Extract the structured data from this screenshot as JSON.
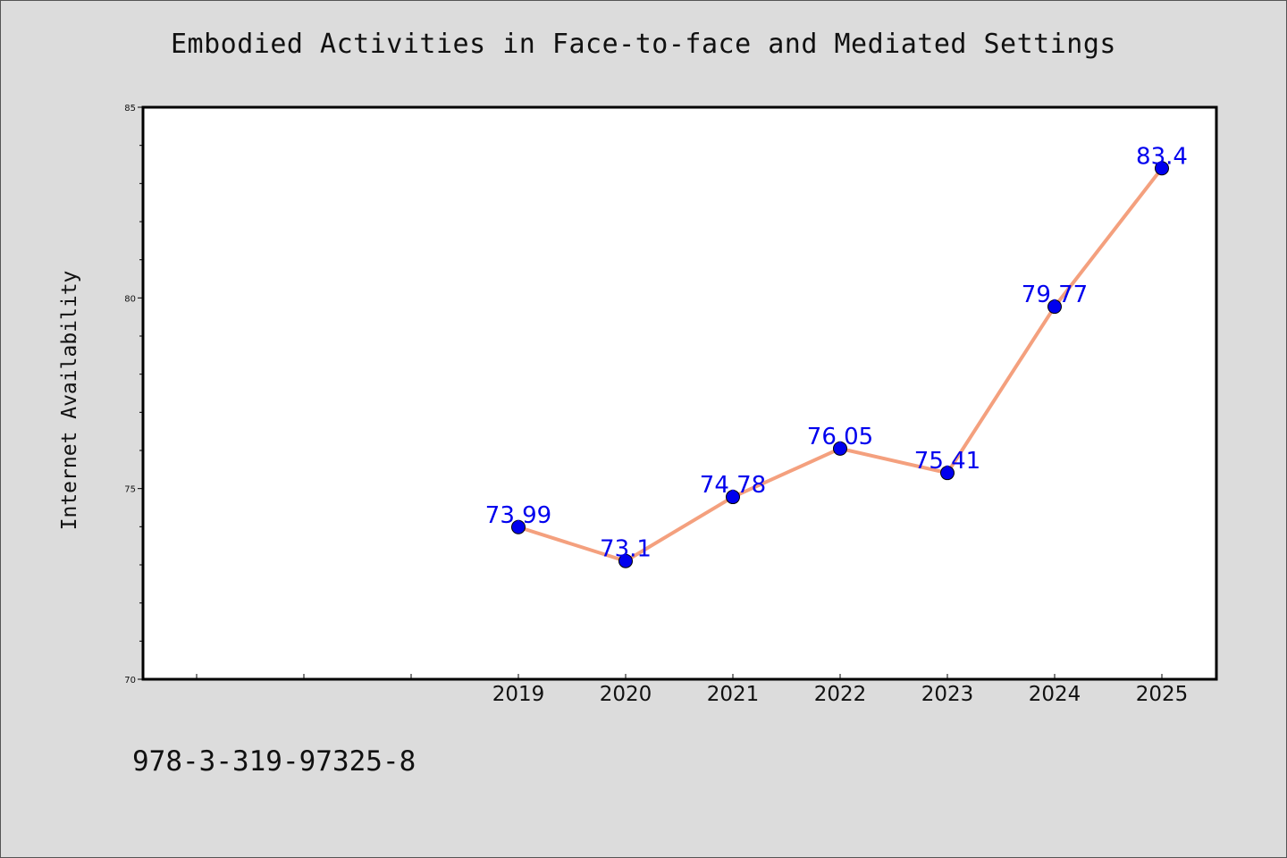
{
  "colors": {
    "background": "#dcdcdc",
    "plot_background": "#ffffff",
    "line": "#f4a07e",
    "marker": "#0000ee",
    "data_label": "#0000ee"
  },
  "footer": {
    "isbn": "978-3-319-97325-8"
  },
  "chart_data": {
    "type": "line",
    "title": "Embodied Activities in Face-to-face and Mediated Settings",
    "xlabel": "",
    "ylabel": "Internet Availability",
    "categories": [
      "2019",
      "2020",
      "2021",
      "2022",
      "2023",
      "2024",
      "2025"
    ],
    "values": [
      73.99,
      73.1,
      74.78,
      76.05,
      75.41,
      79.77,
      83.4
    ],
    "data_labels": [
      "73.99",
      "73.1",
      "74.78",
      "76.05",
      "75.41",
      "79.77",
      "83.4"
    ],
    "yticks": [
      "70",
      "75",
      "80",
      "85"
    ],
    "ylim": [
      70,
      85
    ],
    "grid": false,
    "legend": "none"
  }
}
